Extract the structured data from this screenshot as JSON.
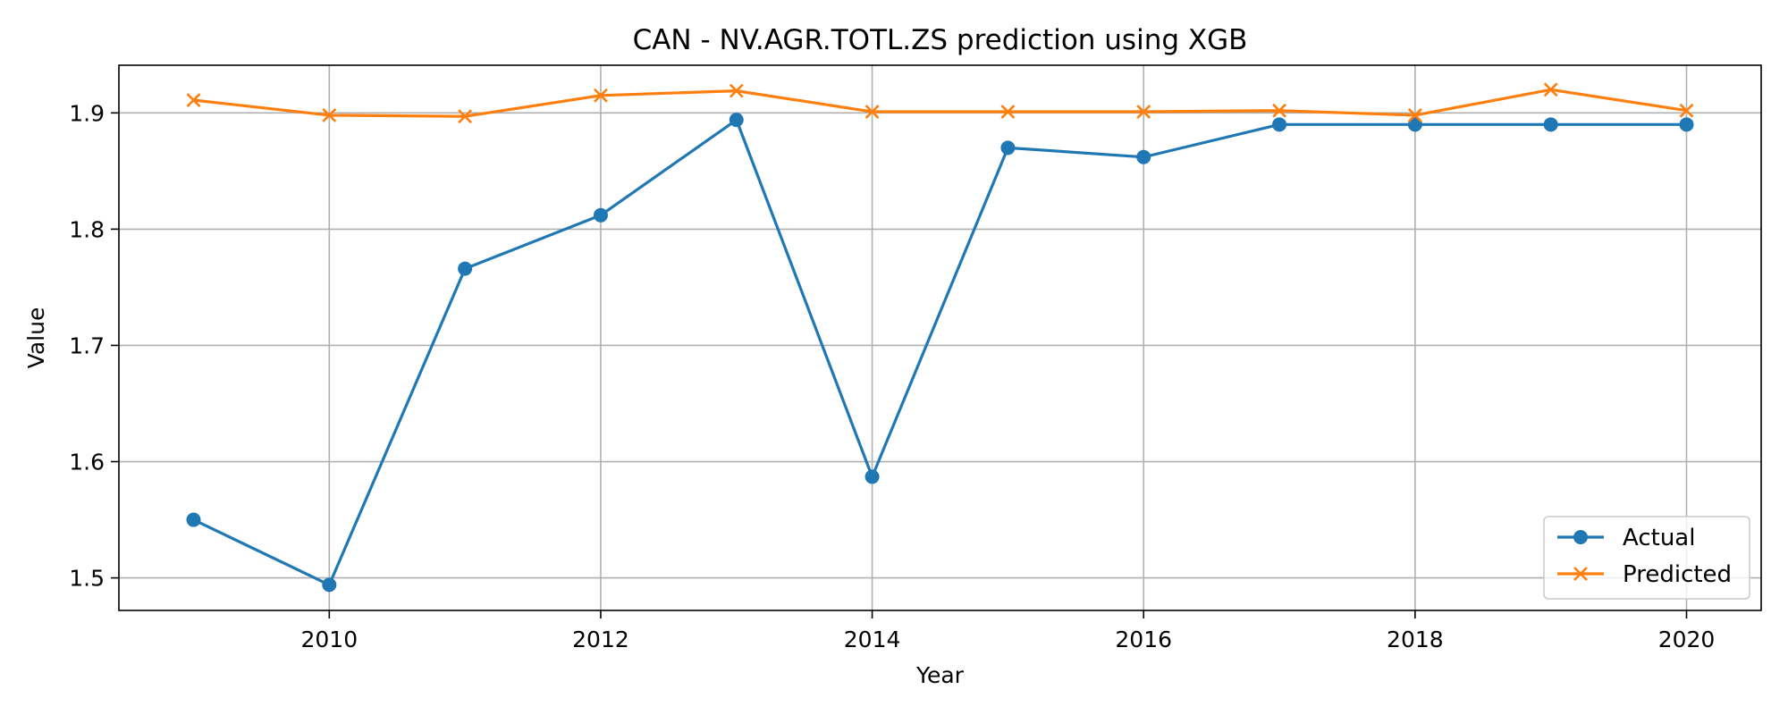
{
  "chart_data": {
    "type": "line",
    "title": "CAN - NV.AGR.TOTL.ZS prediction using XGB",
    "xlabel": "Year",
    "ylabel": "Value",
    "x": [
      2009,
      2010,
      2011,
      2012,
      2013,
      2014,
      2015,
      2016,
      2017,
      2018,
      2019,
      2020
    ],
    "xlim": [
      2008.45,
      2020.55
    ],
    "ylim": [
      1.472,
      1.941
    ],
    "xticks": [
      2010,
      2012,
      2014,
      2016,
      2018,
      2020
    ],
    "yticks": [
      1.5,
      1.6,
      1.7,
      1.8,
      1.9
    ],
    "ytick_labels": [
      "1.5",
      "1.6",
      "1.7",
      "1.8",
      "1.9"
    ],
    "grid": true,
    "legend_position": "lower-right",
    "series": [
      {
        "name": "Actual",
        "marker": "circle",
        "color": "#1f77b4",
        "values": [
          1.55,
          1.494,
          1.766,
          1.812,
          1.894,
          1.587,
          1.87,
          1.862,
          1.89,
          1.89,
          1.89,
          1.89
        ]
      },
      {
        "name": "Predicted",
        "marker": "x",
        "color": "#ff7f0e",
        "values": [
          1.911,
          1.898,
          1.897,
          1.915,
          1.919,
          1.901,
          1.901,
          1.901,
          1.902,
          1.898,
          1.92,
          1.902
        ]
      }
    ]
  }
}
